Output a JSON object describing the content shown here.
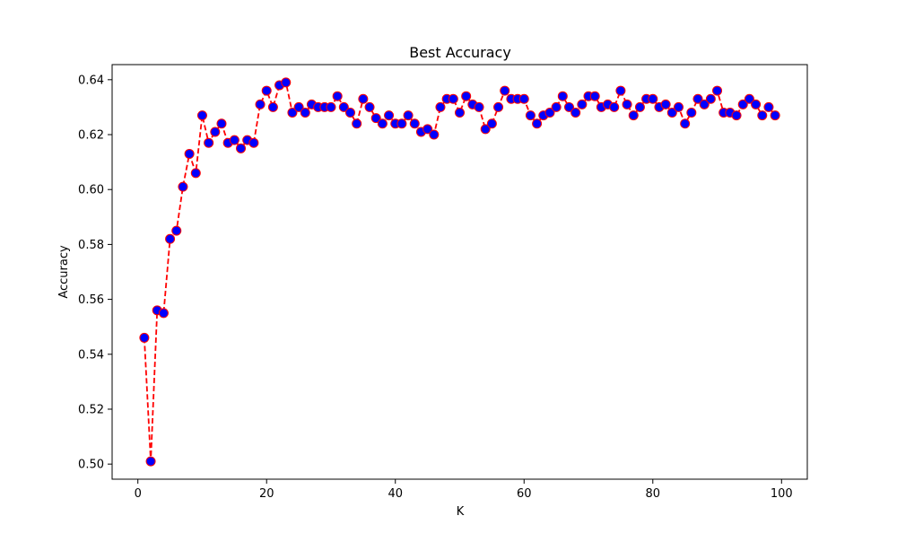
{
  "chart_data": {
    "type": "line",
    "title": "Best Accuracy",
    "xlabel": "K",
    "ylabel": "Accuracy",
    "xlim": [
      -4,
      104
    ],
    "ylim": [
      0.4945,
      0.6455
    ],
    "xticks": [
      0,
      20,
      40,
      60,
      80,
      100
    ],
    "xtick_labels": [
      "0",
      "20",
      "40",
      "60",
      "80",
      "100"
    ],
    "yticks": [
      0.5,
      0.52,
      0.54,
      0.56,
      0.58,
      0.6,
      0.62,
      0.64
    ],
    "ytick_labels": [
      "0.50",
      "0.52",
      "0.54",
      "0.56",
      "0.58",
      "0.60",
      "0.62",
      "0.64"
    ],
    "grid": false,
    "series": [
      {
        "line_color": "#ff0000",
        "line_style": "dashed",
        "marker": "circle",
        "marker_face_color": "#0000ff",
        "marker_edge_color": "#ff0000",
        "x": [
          1,
          2,
          3,
          4,
          5,
          6,
          7,
          8,
          9,
          10,
          11,
          12,
          13,
          14,
          15,
          16,
          17,
          18,
          19,
          20,
          21,
          22,
          23,
          24,
          25,
          26,
          27,
          28,
          29,
          30,
          31,
          32,
          33,
          34,
          35,
          36,
          37,
          38,
          39,
          40,
          41,
          42,
          43,
          44,
          45,
          46,
          47,
          48,
          49,
          50,
          51,
          52,
          53,
          54,
          55,
          56,
          57,
          58,
          59,
          60,
          61,
          62,
          63,
          64,
          65,
          66,
          67,
          68,
          69,
          70,
          71,
          72,
          73,
          74,
          75,
          76,
          77,
          78,
          79,
          80,
          81,
          82,
          83,
          84,
          85,
          86,
          87,
          88,
          89,
          90,
          91,
          92,
          93,
          94,
          95,
          96,
          97,
          98,
          99
        ],
        "y": [
          0.546,
          0.501,
          0.556,
          0.555,
          0.582,
          0.585,
          0.601,
          0.613,
          0.606,
          0.627,
          0.617,
          0.621,
          0.624,
          0.617,
          0.618,
          0.615,
          0.618,
          0.617,
          0.631,
          0.636,
          0.63,
          0.638,
          0.639,
          0.628,
          0.63,
          0.628,
          0.631,
          0.63,
          0.63,
          0.63,
          0.634,
          0.63,
          0.628,
          0.624,
          0.633,
          0.63,
          0.626,
          0.624,
          0.627,
          0.624,
          0.624,
          0.627,
          0.624,
          0.621,
          0.622,
          0.62,
          0.63,
          0.633,
          0.633,
          0.628,
          0.634,
          0.631,
          0.63,
          0.622,
          0.624,
          0.63,
          0.636,
          0.633,
          0.633,
          0.633,
          0.627,
          0.624,
          0.627,
          0.628,
          0.63,
          0.634,
          0.63,
          0.628,
          0.631,
          0.634,
          0.634,
          0.63,
          0.631,
          0.63,
          0.636,
          0.631,
          0.627,
          0.63,
          0.633,
          0.633,
          0.63,
          0.631,
          0.628,
          0.63,
          0.624,
          0.628,
          0.633,
          0.631,
          0.633,
          0.636,
          0.628,
          0.628,
          0.627,
          0.631,
          0.633,
          0.631,
          0.627,
          0.63,
          0.627
        ]
      }
    ]
  }
}
